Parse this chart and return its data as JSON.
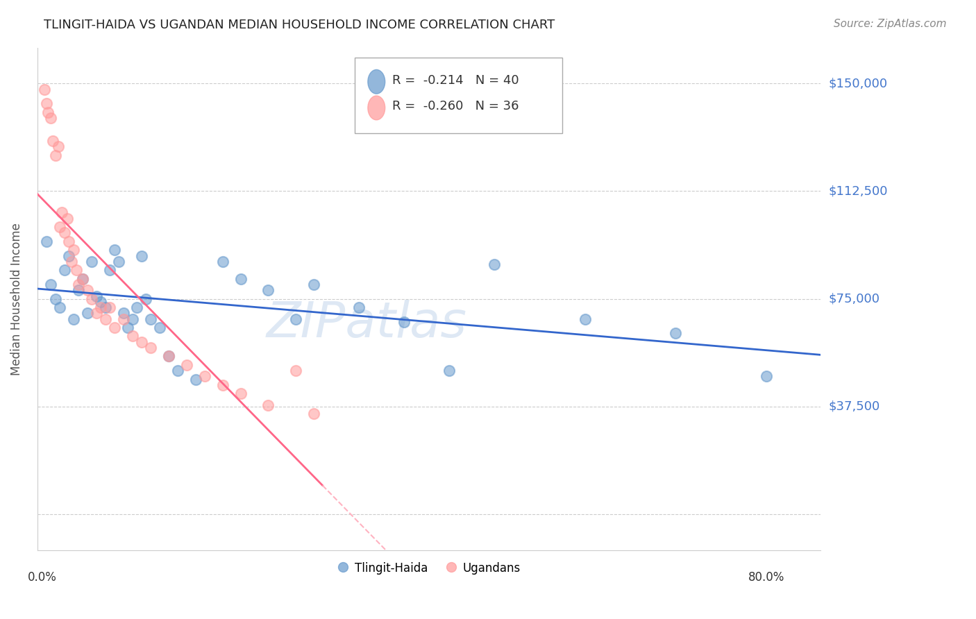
{
  "title": "TLINGIT-HAIDA VS UGANDAN MEDIAN HOUSEHOLD INCOME CORRELATION CHART",
  "source": "Source: ZipAtlas.com",
  "ylabel": "Median Household Income",
  "yticks": [
    0,
    37500,
    75000,
    112500,
    150000
  ],
  "ytick_labels": [
    "",
    "$37,500",
    "$75,000",
    "$112,500",
    "$150,000"
  ],
  "ymax": 162500,
  "ymin": -12500,
  "xmin": -0.005,
  "xmax": 0.86,
  "watermark": "ZIPatlas",
  "legend1_r": "-0.214",
  "legend1_n": "40",
  "legend2_r": "-0.260",
  "legend2_n": "36",
  "blue_color": "#6699CC",
  "pink_color": "#FF9999",
  "line_blue": "#3366CC",
  "line_pink": "#FF6688",
  "line_pink_dashed": "#FFB3C1",
  "tlingit_x": [
    0.005,
    0.01,
    0.015,
    0.02,
    0.025,
    0.03,
    0.035,
    0.04,
    0.045,
    0.05,
    0.055,
    0.06,
    0.065,
    0.07,
    0.075,
    0.08,
    0.085,
    0.09,
    0.095,
    0.1,
    0.105,
    0.11,
    0.115,
    0.12,
    0.13,
    0.14,
    0.15,
    0.17,
    0.2,
    0.22,
    0.25,
    0.28,
    0.3,
    0.35,
    0.4,
    0.45,
    0.5,
    0.6,
    0.7,
    0.8
  ],
  "tlingit_y": [
    95000,
    80000,
    75000,
    72000,
    85000,
    90000,
    68000,
    78000,
    82000,
    70000,
    88000,
    76000,
    74000,
    72000,
    85000,
    92000,
    88000,
    70000,
    65000,
    68000,
    72000,
    90000,
    75000,
    68000,
    65000,
    55000,
    50000,
    47000,
    88000,
    82000,
    78000,
    68000,
    80000,
    72000,
    67000,
    50000,
    87000,
    68000,
    63000,
    48000
  ],
  "ugandan_x": [
    0.003,
    0.005,
    0.007,
    0.01,
    0.012,
    0.015,
    0.018,
    0.02,
    0.022,
    0.025,
    0.028,
    0.03,
    0.033,
    0.035,
    0.038,
    0.04,
    0.045,
    0.05,
    0.055,
    0.06,
    0.065,
    0.07,
    0.075,
    0.08,
    0.09,
    0.1,
    0.11,
    0.12,
    0.14,
    0.16,
    0.18,
    0.2,
    0.22,
    0.25,
    0.28,
    0.3
  ],
  "ugandan_y": [
    148000,
    143000,
    140000,
    138000,
    130000,
    125000,
    128000,
    100000,
    105000,
    98000,
    103000,
    95000,
    88000,
    92000,
    85000,
    80000,
    82000,
    78000,
    75000,
    70000,
    72000,
    68000,
    72000,
    65000,
    68000,
    62000,
    60000,
    58000,
    55000,
    52000,
    48000,
    45000,
    42000,
    38000,
    50000,
    35000
  ]
}
